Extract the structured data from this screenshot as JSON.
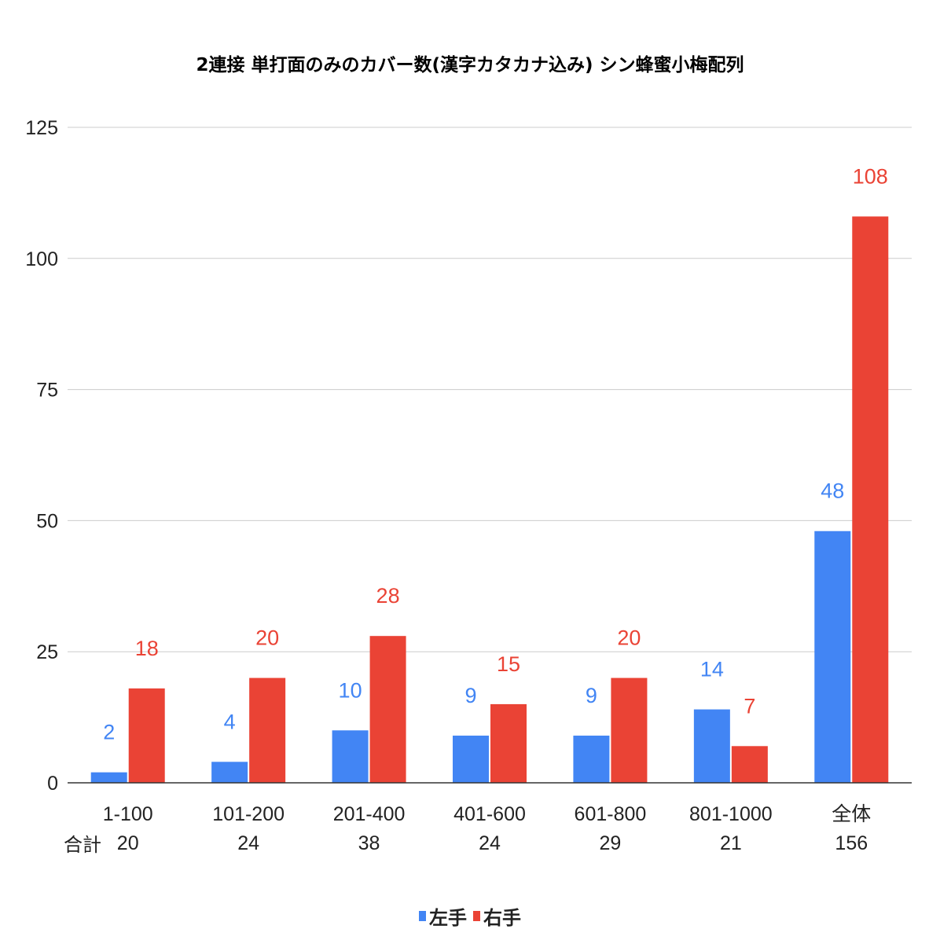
{
  "chart_data": {
    "type": "bar",
    "title": "2連接 単打面のみのカバー数(漢字カタカナ込み) シン蜂蜜小梅配列",
    "categories": [
      "1-100",
      "101-200",
      "201-400",
      "401-600",
      "601-800",
      "801-1000",
      "全体"
    ],
    "totals_label": "合計",
    "totals": [
      "20",
      "24",
      "38",
      "24",
      "29",
      "21",
      "156"
    ],
    "series": [
      {
        "name": "左手",
        "color": "#4285f4",
        "values": [
          2,
          4,
          10,
          9,
          9,
          14,
          48
        ]
      },
      {
        "name": "右手",
        "color": "#ea4335",
        "values": [
          18,
          20,
          28,
          15,
          20,
          7,
          108
        ]
      }
    ],
    "ylim": [
      0,
      125
    ],
    "yticks": [
      0,
      25,
      50,
      75,
      100,
      125
    ],
    "grid": true,
    "data_labels": true,
    "legend_position": "bottom",
    "xlabel": "",
    "ylabel": ""
  }
}
